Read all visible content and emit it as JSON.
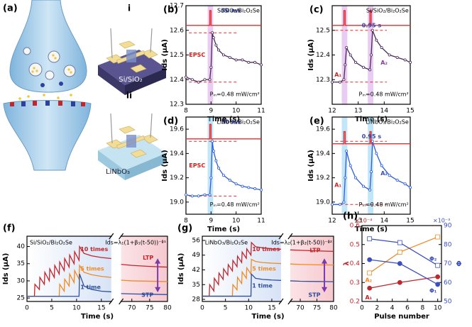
{
  "illustration": {
    "label": "(a)",
    "devices": [
      {
        "label": "i",
        "substrate": "Si/SiO₂"
      },
      {
        "label": "ii",
        "substrate": "LiNbO₃"
      }
    ]
  },
  "chart_data": [
    {
      "type": "line",
      "label": "(b)",
      "xlabel": "Time (s)",
      "ylabel": "Ids (μA)",
      "xlim": [
        8,
        11
      ],
      "xticks": [
        8,
        9,
        10,
        11
      ],
      "ylim": [
        12.3,
        12.7
      ],
      "yticks": [
        12.3,
        12.4,
        12.5,
        12.6,
        12.7
      ],
      "ref_color": "#e03030",
      "annotations": [
        "50 ms",
        "Si/SiO₂/Bi₂O₂Se",
        "EPSC",
        "Pᵢₙ=0.48 mW/cm²"
      ],
      "series": [
        {
          "color": "#4b2c5e",
          "marker": "open-circle",
          "x": [
            8,
            8.25,
            8.5,
            8.75,
            8.95,
            9.0,
            9.05,
            9.1,
            9.2,
            9.3,
            9.5,
            9.75,
            10,
            10.25,
            10.5,
            10.75,
            11
          ],
          "values": [
            12.41,
            12.4,
            12.39,
            12.4,
            12.4,
            12.45,
            12.59,
            12.57,
            12.54,
            12.52,
            12.5,
            12.49,
            12.48,
            12.48,
            12.47,
            12.47,
            12.46
          ]
        },
        {
          "color": "#e03030",
          "band_color": "#d9a0e6",
          "x": [
            8,
            8.95,
            8.95,
            9.0,
            9.0,
            11
          ],
          "values": [
            12.62,
            12.62,
            12.68,
            12.68,
            12.62,
            12.62
          ]
        }
      ]
    },
    {
      "type": "line",
      "label": "(c)",
      "xlabel": "Time (s)",
      "ylabel": "Ids (μA)",
      "xlim": [
        12,
        15
      ],
      "xticks": [
        12,
        13,
        14,
        15
      ],
      "ylim": [
        12.2,
        12.6
      ],
      "yticks": [
        12.3,
        12.4,
        12.5
      ],
      "ref_color": "#e03030",
      "annotations": [
        "0.95 s",
        "Si/SiO₂/Bi₂O₂Se",
        "A₁",
        "A₂",
        "Pᵢₙ=0.48 mW/cm²"
      ],
      "series": [
        {
          "color": "#4b2c5e",
          "marker": "open-circle",
          "x": [
            12,
            12.3,
            12.45,
            12.5,
            12.55,
            12.7,
            12.9,
            13.2,
            13.45,
            13.5,
            13.55,
            13.7,
            13.9,
            14.2,
            14.5,
            14.8,
            15
          ],
          "values": [
            12.29,
            12.29,
            12.3,
            12.36,
            12.43,
            12.4,
            12.37,
            12.35,
            12.34,
            12.4,
            12.5,
            12.46,
            12.43,
            12.4,
            12.39,
            12.38,
            12.37
          ]
        },
        {
          "color": "#e03030",
          "band_color": "#d9a0e6",
          "x": [
            12,
            12.45,
            12.45,
            12.5,
            12.5,
            13.45,
            13.45,
            13.5,
            13.5,
            15
          ],
          "values": [
            12.52,
            12.52,
            12.58,
            12.58,
            12.52,
            12.52,
            12.58,
            12.58,
            12.52,
            12.52
          ]
        }
      ]
    },
    {
      "type": "line",
      "label": "(d)",
      "xlabel": "Time (s)",
      "ylabel": "Ids (μA)",
      "xlim": [
        8,
        11
      ],
      "xticks": [
        8,
        9,
        10,
        11
      ],
      "ylim": [
        18.9,
        19.7
      ],
      "yticks": [
        {
          "value": 19,
          "label": "19.0"
        },
        19.2,
        19.4,
        19.6
      ],
      "ref_color": "#e03030",
      "annotations": [
        "50 ms",
        "LiNbO₃/Bi₂O₂Se",
        "EPSC",
        "Pᵢₙ=0.48 mW/cm²"
      ],
      "series": [
        {
          "color": "#2f5fd8",
          "marker": "open-circle",
          "x": [
            8,
            8.25,
            8.5,
            8.75,
            8.95,
            9.0,
            9.05,
            9.1,
            9.2,
            9.3,
            9.5,
            9.75,
            10,
            10.25,
            10.5,
            10.75,
            11
          ],
          "values": [
            19.06,
            19.05,
            19.05,
            19.06,
            19.06,
            19.2,
            19.5,
            19.42,
            19.34,
            19.28,
            19.22,
            19.18,
            19.15,
            19.13,
            19.12,
            19.11,
            19.1
          ]
        },
        {
          "color": "#e03030",
          "band_color": "#8fd0f0",
          "x": [
            8,
            8.95,
            8.95,
            9.0,
            9.0,
            11
          ],
          "values": [
            19.52,
            19.52,
            19.64,
            19.64,
            19.52,
            19.52
          ]
        }
      ]
    },
    {
      "type": "line",
      "label": "(e)",
      "xlabel": "Time (s)",
      "ylabel": "Ids (μA)",
      "xlim": [
        12,
        15
      ],
      "xticks": [
        12,
        13,
        14,
        15
      ],
      "ylim": [
        18.9,
        19.7
      ],
      "yticks": [
        {
          "value": 19,
          "label": "19.0"
        },
        19.2,
        19.4,
        19.6
      ],
      "ref_color": "#e03030",
      "annotations": [
        "0.95 s",
        "LiNbO₃/Bi₂O₂Se",
        "A₁",
        "A₂",
        "Pᵢₙ=0.48 mW/cm²"
      ],
      "series": [
        {
          "color": "#2f5fd8",
          "marker": "open-circle",
          "x": [
            12,
            12.3,
            12.45,
            12.5,
            12.55,
            12.7,
            12.9,
            13.2,
            13.45,
            13.5,
            13.55,
            13.7,
            13.9,
            14.2,
            14.5,
            14.8,
            15
          ],
          "values": [
            18.98,
            18.98,
            19.0,
            19.2,
            19.42,
            19.3,
            19.2,
            19.13,
            19.1,
            19.25,
            19.5,
            19.4,
            19.3,
            19.22,
            19.18,
            19.15,
            19.12
          ]
        },
        {
          "color": "#e03030",
          "band_color": "#8fd0f0",
          "x": [
            12,
            12.45,
            12.45,
            12.5,
            12.5,
            13.45,
            13.45,
            13.5,
            13.5,
            15
          ],
          "values": [
            19.48,
            19.48,
            19.58,
            19.58,
            19.48,
            19.48,
            19.58,
            19.58,
            19.48,
            19.48
          ]
        }
      ]
    },
    {
      "type": "line",
      "label": "(f)",
      "xlabel": "Time (s)",
      "ylabel": "Ids (μA)",
      "xlim": [
        0,
        80
      ],
      "xbreak": [
        17,
        67
      ],
      "xticks": [
        0,
        5,
        10,
        15,
        70,
        75,
        80
      ],
      "ylim": [
        24,
        43
      ],
      "yticks": [
        25,
        30,
        35,
        40
      ],
      "annotations": [
        "Si/SiO₂/Bi₂O₂Se",
        "Ids=λ₁(1+β₁(t-50))⁻ᶲ¹",
        "LTP",
        "STP"
      ],
      "series": [
        {
          "name": "10 times",
          "color": "#c0262c",
          "x": [
            0,
            1.5,
            1.6,
            2.5,
            2.6,
            3.5,
            3.6,
            4.5,
            4.6,
            5.5,
            5.6,
            6.5,
            6.6,
            7.5,
            7.6,
            8.5,
            8.6,
            9.5,
            9.6,
            10.5,
            10.6,
            11.5,
            13,
            15,
            17,
            67,
            70,
            75,
            80
          ],
          "values": [
            25.5,
            25.5,
            29,
            27.5,
            31,
            29,
            32.5,
            30,
            33.5,
            31,
            34.5,
            32,
            35.5,
            33,
            36.5,
            34,
            37.5,
            35,
            38.5,
            36,
            40,
            38,
            37.3,
            36.8,
            36.5,
            34.8,
            34.5,
            34.2,
            34.0
          ]
        },
        {
          "name": "5 times",
          "color": "#f08a24",
          "x": [
            0,
            6.5,
            6.6,
            7.5,
            7.6,
            8.5,
            8.6,
            9.5,
            9.6,
            10.5,
            10.6,
            11.5,
            13,
            15,
            17,
            67,
            70,
            75,
            80
          ],
          "values": [
            25.5,
            25.5,
            29,
            27,
            30.5,
            28.5,
            32,
            29.5,
            33,
            30.5,
            34.5,
            32.5,
            31.8,
            31.3,
            31,
            30.2,
            30,
            29.9,
            29.8
          ]
        },
        {
          "name": "1 time",
          "color": "#2d4f9e",
          "x": [
            0,
            10.5,
            10.6,
            11.5,
            13,
            15,
            17,
            67,
            70,
            75,
            80
          ],
          "values": [
            25.5,
            25.5,
            32,
            28.5,
            27.5,
            27,
            26.8,
            26.3,
            26.2,
            26.1,
            26
          ]
        }
      ]
    },
    {
      "type": "line",
      "label": "(g)",
      "xlabel": "Time (s)",
      "ylabel": "Ids (μA)",
      "xlim": [
        0,
        80
      ],
      "xbreak": [
        17,
        67
      ],
      "xticks": [
        0,
        5,
        10,
        15,
        70,
        75,
        80
      ],
      "ylim": [
        27,
        58
      ],
      "yticks": [
        28,
        35,
        42,
        49,
        56
      ],
      "annotations": [
        "LiNbO₃/Bi₂O₂Se",
        "Ids=λ₂(1+β₂(t-50))⁻ᶲ²",
        "LTP",
        "STP"
      ],
      "series": [
        {
          "name": "10 times",
          "color": "#c0262c",
          "x": [
            0,
            1.5,
            1.6,
            2.5,
            2.6,
            3.5,
            3.6,
            4.5,
            4.6,
            5.5,
            5.6,
            6.5,
            6.6,
            7.5,
            7.6,
            8.5,
            8.6,
            9.5,
            9.6,
            10.5,
            10.6,
            11.5,
            13,
            15,
            17,
            67,
            70,
            75,
            80
          ],
          "values": [
            29.5,
            29.5,
            35,
            32,
            38,
            35,
            40.5,
            37.5,
            42.5,
            39.5,
            44.5,
            41.5,
            46.5,
            43.5,
            48.5,
            45.5,
            50.5,
            47.5,
            52,
            49,
            55,
            53,
            52.5,
            52,
            51.8,
            51.5,
            51.3,
            51.0,
            50.8
          ]
        },
        {
          "name": "5 times",
          "color": "#f08a24",
          "x": [
            0,
            6.5,
            6.6,
            7.5,
            7.6,
            8.5,
            8.6,
            9.5,
            9.6,
            10.5,
            10.6,
            11.5,
            13,
            15,
            17,
            67,
            70,
            75,
            80
          ],
          "values": [
            29.5,
            29.5,
            35,
            32.5,
            38.5,
            35.5,
            41,
            38,
            43,
            40,
            47,
            46,
            45.5,
            45.2,
            45,
            44.8,
            44.6,
            44.4,
            44.3
          ]
        },
        {
          "name": "1 time",
          "color": "#2d4f9e",
          "x": [
            0,
            10.5,
            10.6,
            11.5,
            13,
            15,
            17,
            67,
            70,
            75,
            80
          ],
          "values": [
            29.5,
            29.5,
            40,
            38,
            37.5,
            37.2,
            37,
            36.8,
            36.6,
            36.5,
            36.4
          ]
        }
      ]
    },
    {
      "type": "line",
      "label": "(h)",
      "xlabel": "Pulse number",
      "ylabel": "λ",
      "y2label": "Φ",
      "ymultiplier": "×10⁻⁴",
      "y2multiplier": "×10⁻³",
      "xlim": [
        0,
        10.5
      ],
      "xticks": [
        0,
        2,
        4,
        6,
        8,
        10
      ],
      "ylim": [
        0.2,
        0.6
      ],
      "yticks": [
        0.2,
        0.3,
        0.4,
        0.5,
        0.6
      ],
      "y2lim": [
        50,
        90
      ],
      "y2ticks": [
        50,
        60,
        70,
        80,
        90
      ],
      "x": [
        1,
        5,
        10
      ],
      "series": [
        {
          "name": "A₁",
          "color": "#c0262c",
          "marker": "circle",
          "values": [
            0.27,
            0.3,
            0.33
          ]
        },
        {
          "name": "A₂",
          "color": "#f08a24",
          "marker": "open-square",
          "values": [
            0.35,
            0.46,
            0.54
          ]
        },
        {
          "name": "Φ₂",
          "color": "#3a4fc0",
          "marker": "open-square",
          "axis": "y2",
          "values": [
            83,
            81,
            69
          ]
        },
        {
          "name": "Φ₁",
          "color": "#3a4fc0",
          "marker": "circle",
          "axis": "y2",
          "values": [
            72,
            70,
            59
          ]
        }
      ]
    }
  ]
}
